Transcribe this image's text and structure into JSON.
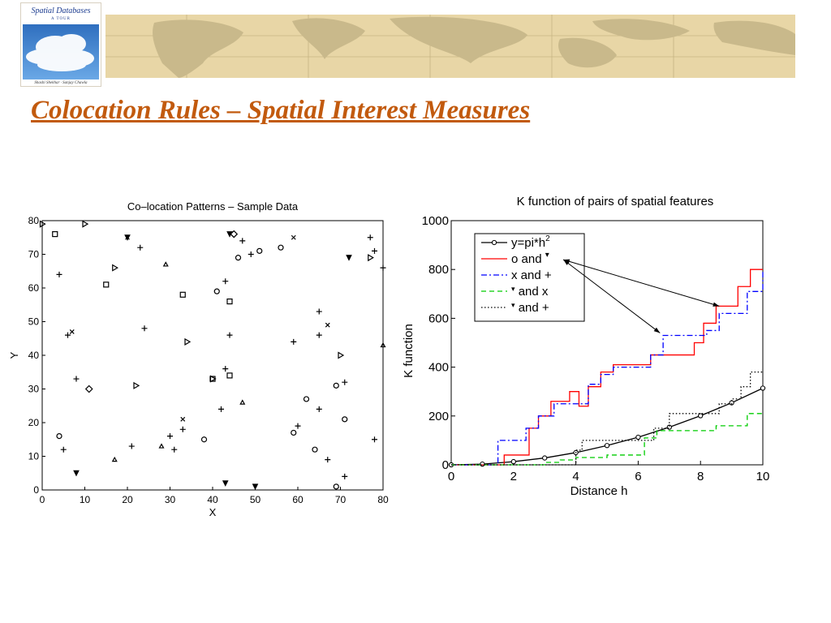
{
  "banner": {
    "book_title": "Spatial Databases",
    "book_subtitle": "A TOUR",
    "book_authors": "Shashi Shekhar · Sanjay Chawla"
  },
  "slide": {
    "title": "Colocation Rules – Spatial Interest Measures"
  },
  "colors": {
    "title": "#c25a0e",
    "map": "#e8d6a6",
    "land": "#c9b98b"
  },
  "chart_data": [
    {
      "type": "scatter",
      "title": "Co–location Patterns – Sample Data",
      "xlabel": "X",
      "ylabel": "Y",
      "xlim": [
        0,
        80
      ],
      "ylim": [
        0,
        80
      ],
      "xticks": [
        0,
        10,
        20,
        30,
        40,
        50,
        60,
        70,
        80
      ],
      "yticks": [
        0,
        10,
        20,
        30,
        40,
        50,
        60,
        70,
        80
      ],
      "series": [
        {
          "marker": "square",
          "points": [
            [
              3,
              76
            ],
            [
              15,
              61
            ],
            [
              33,
              58
            ],
            [
              40,
              33
            ],
            [
              44,
              34
            ],
            [
              44,
              56
            ]
          ]
        },
        {
          "marker": "circle",
          "points": [
            [
              4,
              16
            ],
            [
              38,
              15
            ],
            [
              41,
              59
            ],
            [
              46,
              69
            ],
            [
              51,
              71
            ],
            [
              56,
              72
            ],
            [
              59,
              17
            ],
            [
              62,
              27
            ],
            [
              64,
              12
            ],
            [
              69,
              31
            ],
            [
              69,
              1
            ],
            [
              71,
              21
            ]
          ]
        },
        {
          "marker": "plus",
          "points": [
            [
              4,
              64
            ],
            [
              5,
              12
            ],
            [
              6,
              46
            ],
            [
              8,
              33
            ],
            [
              21,
              13
            ],
            [
              23,
              72
            ],
            [
              24,
              48
            ],
            [
              30,
              16
            ],
            [
              31,
              12
            ],
            [
              33,
              18
            ],
            [
              42,
              24
            ],
            [
              43,
              62
            ],
            [
              43,
              36
            ],
            [
              44,
              46
            ],
            [
              47,
              74
            ],
            [
              49,
              70
            ],
            [
              59,
              44
            ],
            [
              60,
              19
            ],
            [
              65,
              53
            ],
            [
              65,
              24
            ],
            [
              65,
              46
            ],
            [
              67,
              9
            ],
            [
              71,
              4
            ],
            [
              71,
              32
            ],
            [
              77,
              75
            ],
            [
              78,
              71
            ],
            [
              78,
              15
            ],
            [
              80,
              66
            ]
          ]
        },
        {
          "marker": "triangle-up",
          "points": [
            [
              0,
              79
            ],
            [
              10,
              79
            ],
            [
              17,
              66
            ],
            [
              22,
              31
            ],
            [
              34,
              44
            ],
            [
              40,
              33
            ],
            [
              77,
              69
            ],
            [
              70,
              40
            ]
          ]
        },
        {
          "marker": "triangle-down",
          "points": [
            [
              8,
              5
            ],
            [
              20,
              75
            ],
            [
              43,
              2
            ],
            [
              44,
              76
            ],
            [
              50,
              1
            ],
            [
              72,
              69
            ]
          ]
        },
        {
          "marker": "diamond",
          "points": [
            [
              11,
              30
            ],
            [
              45,
              76
            ]
          ]
        },
        {
          "marker": "x",
          "points": [
            [
              7,
              47
            ],
            [
              20,
              75
            ],
            [
              33,
              21
            ],
            [
              59,
              75
            ],
            [
              67,
              49
            ]
          ]
        },
        {
          "marker": "tri-small",
          "points": [
            [
              17,
              9
            ],
            [
              28,
              13
            ],
            [
              29,
              67
            ],
            [
              47,
              26
            ],
            [
              80,
              43
            ]
          ]
        }
      ]
    },
    {
      "type": "line",
      "title": "K function of pairs of spatial features",
      "xlabel": "Distance h",
      "ylabel": "K function",
      "xlim": [
        0,
        10
      ],
      "ylim": [
        0,
        1000
      ],
      "xticks": [
        0,
        2,
        4,
        6,
        8,
        10
      ],
      "yticks": [
        0,
        200,
        400,
        600,
        800,
        1000
      ],
      "legend": "top-left",
      "legend_items": [
        {
          "label": "y=pi*h",
          "sup": "2",
          "style": "solid-circle",
          "color": "#000000"
        },
        {
          "label": "o and ",
          "sup": "▾",
          "style": "solid",
          "color": "#ff0000"
        },
        {
          "label": "x and +",
          "style": "dashdot",
          "color": "#0000ff"
        },
        {
          "label": "and x",
          "pre": "▾",
          "style": "dashed",
          "color": "#00cc00"
        },
        {
          "label": "and +",
          "pre": "▾",
          "style": "dotted",
          "color": "#000000"
        }
      ],
      "series": [
        {
          "name": "y=pi*h2",
          "style": "solid-circle",
          "color": "#000000",
          "x": [
            0,
            1,
            2,
            3,
            4,
            5,
            6,
            7,
            8,
            9,
            10
          ],
          "y": [
            0,
            3,
            13,
            28,
            50,
            79,
            113,
            154,
            201,
            254,
            314
          ]
        },
        {
          "name": "o and",
          "style": "solid",
          "color": "#ff0000",
          "x": [
            0,
            1.3,
            1.7,
            2.5,
            2.8,
            3.2,
            3.8,
            4.1,
            4.4,
            4.8,
            5.2,
            6.2,
            6.4,
            6.8,
            7.5,
            7.8,
            8.1,
            8.5,
            9.2,
            9.6,
            10
          ],
          "y": [
            0,
            0,
            40,
            150,
            200,
            260,
            300,
            240,
            320,
            380,
            410,
            410,
            450,
            450,
            450,
            500,
            580,
            650,
            730,
            800,
            800
          ]
        },
        {
          "name": "x and +",
          "style": "dashdot",
          "color": "#0000ff",
          "x": [
            0,
            1.5,
            2.0,
            2.4,
            2.8,
            3.3,
            4.1,
            4.4,
            4.8,
            5.2,
            6.0,
            6.4,
            6.8,
            7.6,
            8.2,
            8.6,
            9.2,
            9.5,
            10
          ],
          "y": [
            0,
            100,
            100,
            150,
            200,
            250,
            250,
            330,
            370,
            400,
            400,
            450,
            530,
            530,
            550,
            620,
            620,
            710,
            790
          ]
        },
        {
          "name": "and x",
          "style": "dashed",
          "color": "#00cc00",
          "x": [
            0,
            2.5,
            3.0,
            3.5,
            4.0,
            5.0,
            5.8,
            6.2,
            6.6,
            7.0,
            8.0,
            8.5,
            9.2,
            9.5,
            10
          ],
          "y": [
            0,
            0,
            10,
            20,
            30,
            40,
            40,
            110,
            140,
            140,
            140,
            160,
            160,
            210,
            210
          ]
        },
        {
          "name": "and +",
          "style": "dotted",
          "color": "#000000",
          "x": [
            0,
            3.5,
            4.0,
            4.2,
            4.5,
            5.8,
            6.5,
            7.0,
            7.5,
            8.2,
            8.6,
            9.0,
            9.3,
            9.6,
            10
          ],
          "y": [
            0,
            0,
            60,
            100,
            100,
            100,
            150,
            210,
            210,
            210,
            250,
            270,
            320,
            380,
            380
          ]
        }
      ],
      "annotation_arrows": [
        {
          "from": [
            8.6,
            650
          ],
          "to": [
            3.6,
            840
          ]
        },
        {
          "from": [
            6.7,
            540
          ],
          "to": [
            3.6,
            840
          ]
        }
      ]
    }
  ]
}
